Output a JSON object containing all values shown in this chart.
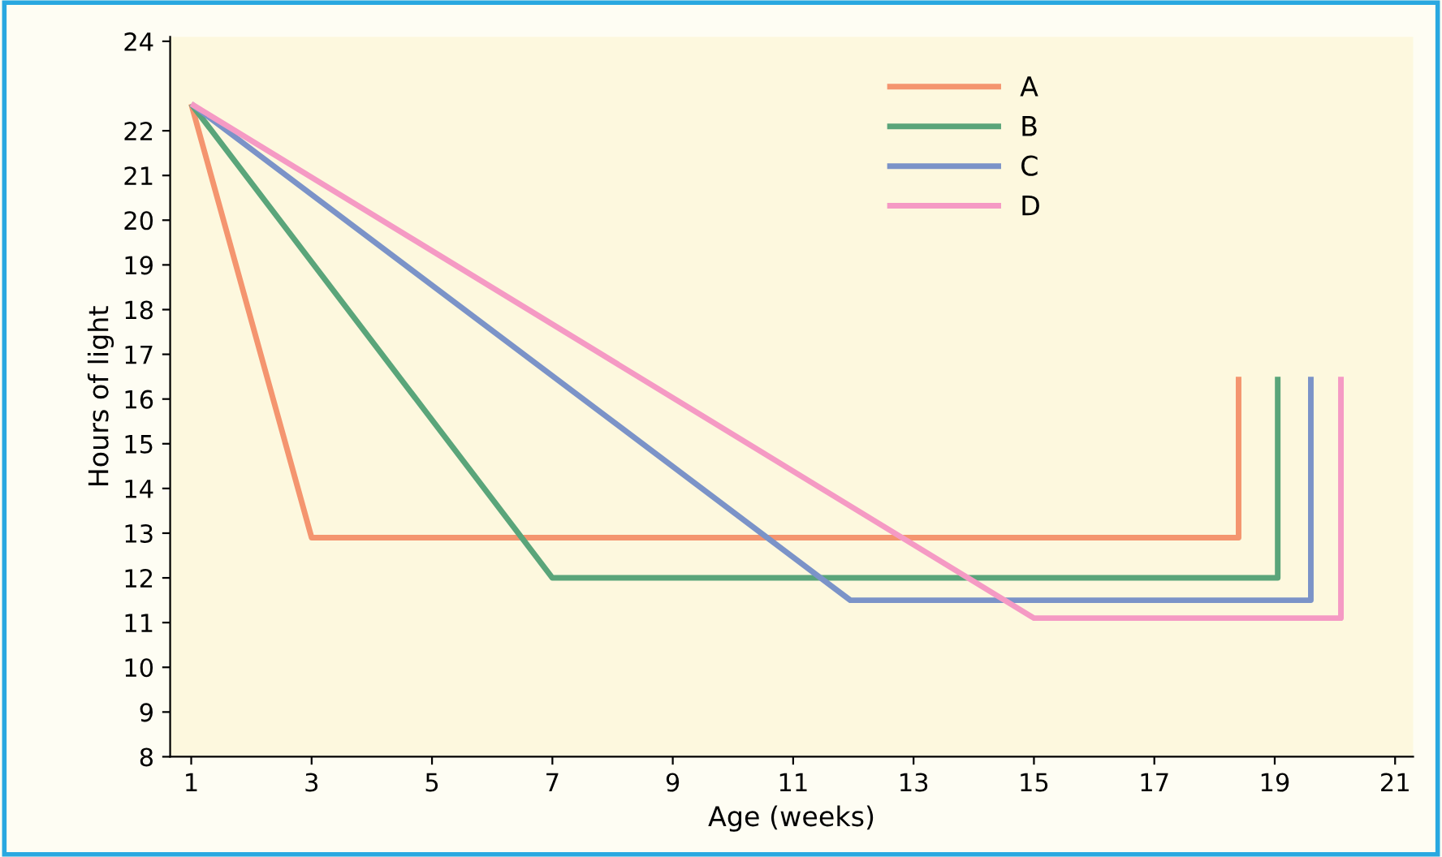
{
  "chart_data": {
    "type": "line",
    "xlabel": "Age (weeks)",
    "ylabel": "Hours of light",
    "xlim": [
      0.65,
      21.3
    ],
    "xticks": [
      1,
      3,
      5,
      7,
      9,
      11,
      13,
      15,
      17,
      19,
      21
    ],
    "ylim": [
      8,
      24.1
    ],
    "yticks": [
      8,
      9,
      10,
      11,
      12,
      13,
      14,
      15,
      16,
      17,
      18,
      19,
      20,
      21,
      22,
      24
    ],
    "grid": false,
    "legend": "top right",
    "marker": "none",
    "line_style": "solid",
    "series": [
      {
        "name": "A",
        "color": "#f4956f",
        "x": [
          1,
          3,
          18.4,
          18.4
        ],
        "values": [
          22.6,
          12.9,
          12.9,
          16.5
        ]
      },
      {
        "name": "B",
        "color": "#5aa57a",
        "x": [
          1,
          7,
          19.05,
          19.05
        ],
        "values": [
          22.6,
          12.0,
          12.0,
          16.5
        ]
      },
      {
        "name": "C",
        "color": "#7b93c8",
        "x": [
          1,
          11.95,
          19.6,
          19.6
        ],
        "values": [
          22.6,
          11.5,
          11.5,
          16.5
        ]
      },
      {
        "name": "D",
        "color": "#f59ac4",
        "x": [
          1,
          15.0,
          20.1,
          20.1
        ],
        "values": [
          22.6,
          11.1,
          11.1,
          16.5
        ]
      }
    ]
  }
}
